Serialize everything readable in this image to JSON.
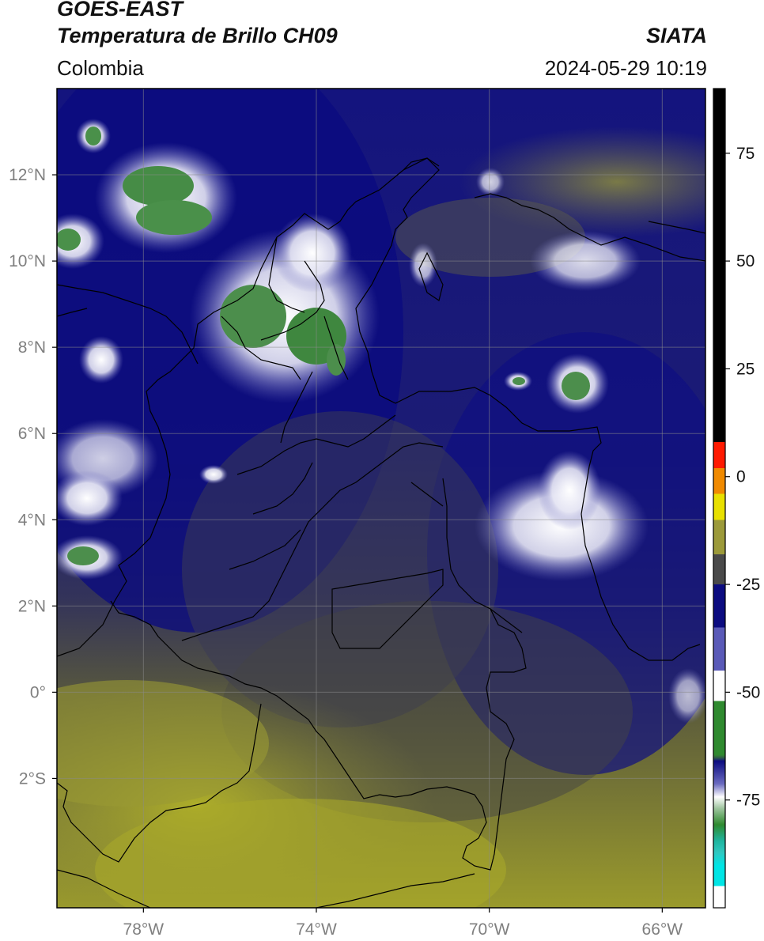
{
  "header": {
    "satellite": "GOES-EAST",
    "product": "Temperatura de Brillo CH09",
    "brand": "SIATA",
    "region": "Colombia",
    "timestamp": "2024-05-29 10:19"
  },
  "map": {
    "lon_range": [
      -80,
      -65
    ],
    "lat_range": [
      -5,
      14
    ],
    "lon_ticks": [
      {
        "value": -78,
        "label": "78°W"
      },
      {
        "value": -74,
        "label": "74°W"
      },
      {
        "value": -70,
        "label": "70°W"
      },
      {
        "value": -66,
        "label": "66°W"
      }
    ],
    "lat_ticks": [
      {
        "value": 12,
        "label": "12°N"
      },
      {
        "value": 10,
        "label": "10°N"
      },
      {
        "value": 8,
        "label": "8°N"
      },
      {
        "value": 6,
        "label": "6°N"
      },
      {
        "value": 4,
        "label": "4°N"
      },
      {
        "value": 2,
        "label": "2°N"
      },
      {
        "value": 0,
        "label": "0°"
      },
      {
        "value": -2,
        "label": "2°S"
      }
    ]
  },
  "colorbar": {
    "range": [
      -100,
      90
    ],
    "ticks": [
      {
        "value": 75,
        "label": "75"
      },
      {
        "value": 50,
        "label": "50"
      },
      {
        "value": 25,
        "label": "25"
      },
      {
        "value": 0,
        "label": "0"
      },
      {
        "value": -25,
        "label": "-25"
      },
      {
        "value": -50,
        "label": "-50"
      },
      {
        "value": -75,
        "label": "-75"
      }
    ],
    "colors": {
      "black": "#000000",
      "red": "#ff1a00",
      "orange": "#f08a00",
      "yellow": "#e8e000",
      "olive": "#9c9a3a",
      "gray": "#4a4a4a",
      "navy": "#0c0c80",
      "blue": "#5a5ab8",
      "white": "#ffffff",
      "green": "#2f8a2f",
      "teal": "#1fb5a0",
      "cyan": "#00e5e5"
    }
  }
}
